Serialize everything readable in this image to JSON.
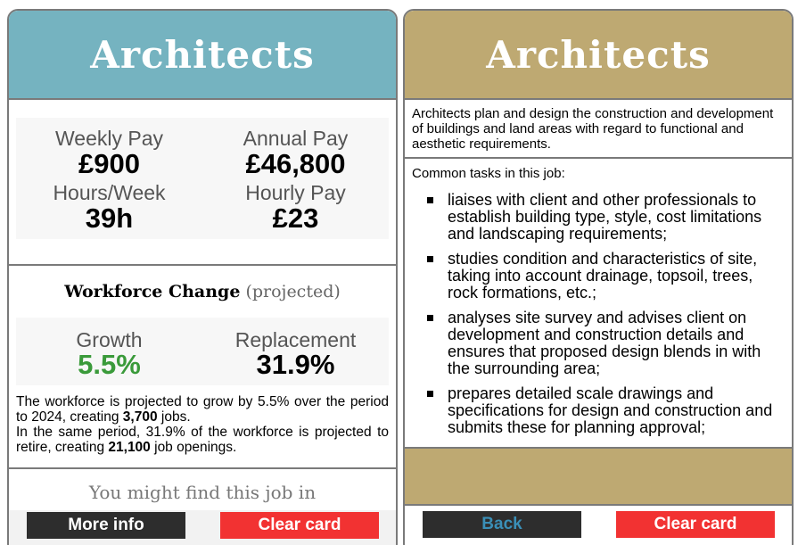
{
  "left_card": {
    "title": "Architects",
    "pay": {
      "weekly_label": "Weekly Pay",
      "weekly_value": "£900",
      "annual_label": "Annual Pay",
      "annual_value": "£46,800",
      "hours_label": "Hours/Week",
      "hours_value": "39h",
      "hourly_label": "Hourly Pay",
      "hourly_value": "£23"
    },
    "workforce": {
      "title": "Workforce Change",
      "title_suffix": "(projected)",
      "growth_label": "Growth",
      "growth_value": "5.5%",
      "replacement_label": "Replacement",
      "replacement_value": "31.9%",
      "growth_text_1": "The workforce is projected to grow by 5.5% over the period to 2024, creating ",
      "growth_jobs": "3,700",
      "growth_text_2": " jobs.",
      "retire_text_1": "In the same period, 31.9% of the workforce is projected to retire, creating ",
      "retire_jobs": "21,100",
      "retire_text_2": " job openings."
    },
    "find_job": "You might find this job in",
    "more_info_label": "More info",
    "clear_card_label": "Clear card"
  },
  "right_card": {
    "title": "Architects",
    "description": "Architects plan and design the construction and development of buildings and land areas with regard to functional and aesthetic requirements.",
    "tasks_heading": "Common tasks in this job:",
    "tasks": [
      "liaises with client and other professionals to establish building type, style, cost limitations and landscaping requirements;",
      "studies condition and characteristics of site, taking into account drainage, topsoil, trees, rock formations, etc.;",
      "analyses site survey and advises client on development and construction details and ensures that proposed design blends in with the surrounding area;",
      "prepares detailed scale drawings and specifications for design and construction and submits these for planning approval;"
    ],
    "back_label": "Back",
    "clear_card_label": "Clear card"
  },
  "colors": {
    "left_header": "#75b3c0",
    "right_header": "#bea972",
    "growth_green": "#3a9a3a",
    "clear_red": "#f23232",
    "dark_button": "#2d2d2d",
    "back_text": "#3a8fb7"
  }
}
